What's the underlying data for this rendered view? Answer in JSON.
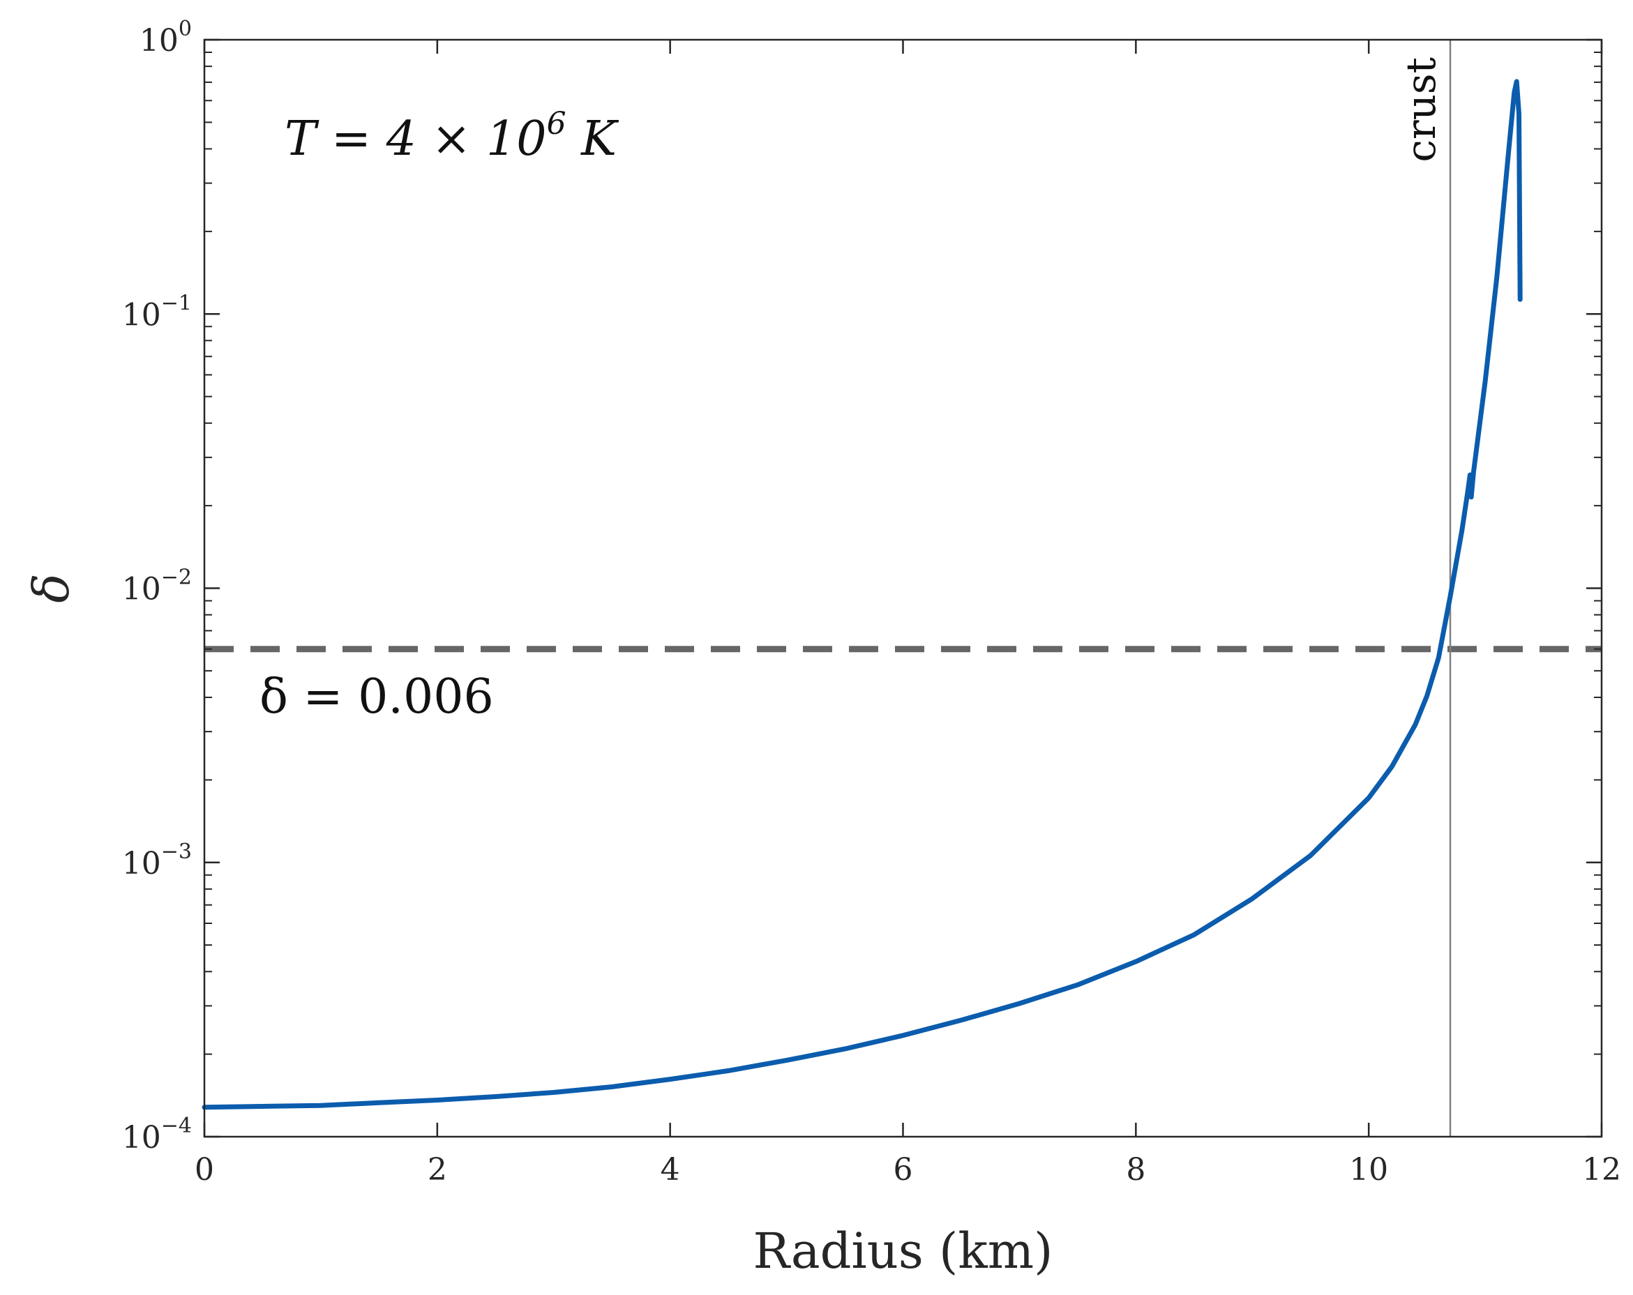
{
  "chart_data": {
    "type": "line",
    "xlabel": "Radius (km)",
    "ylabel": "δ",
    "xlim": [
      0,
      12
    ],
    "ylim": [
      0.0001,
      1
    ],
    "yscale": "log",
    "grid": false,
    "x_ticks": [
      0,
      2,
      4,
      6,
      8,
      10,
      12
    ],
    "x_tick_labels": [
      "0",
      "2",
      "4",
      "6",
      "8",
      "10",
      "12"
    ],
    "y_ticks": [
      0.0001,
      0.001,
      0.01,
      0.1,
      1
    ],
    "y_tick_labels": [
      {
        "base": "10",
        "exp": "−4"
      },
      {
        "base": "10",
        "exp": "−3"
      },
      {
        "base": "10",
        "exp": "−2"
      },
      {
        "base": "10",
        "exp": "−1"
      },
      {
        "base": "10",
        "exp": "0"
      }
    ],
    "series": [
      {
        "color": "#0b5cad",
        "x": [
          0,
          0.5,
          1,
          1.5,
          2,
          2.5,
          3,
          3.5,
          4,
          4.5,
          5,
          5.5,
          6,
          6.5,
          7,
          7.5,
          8,
          8.5,
          9,
          9.5,
          10,
          10.2,
          10.4,
          10.5,
          10.6,
          10.7,
          10.8,
          10.85,
          10.87,
          10.88,
          10.9,
          11.0,
          11.1,
          11.2,
          11.25,
          11.27,
          11.29,
          11.3
        ],
        "y": [
          0.000128,
          0.000129,
          0.00013,
          0.000133,
          0.000136,
          0.00014,
          0.000145,
          0.000152,
          0.000162,
          0.000174,
          0.00019,
          0.000209,
          0.000234,
          0.000266,
          0.000306,
          0.000358,
          0.000435,
          0.000545,
          0.000738,
          0.00106,
          0.00172,
          0.00224,
          0.00318,
          0.00405,
          0.00558,
          0.00934,
          0.0162,
          0.0224,
          0.0259,
          0.0215,
          0.0265,
          0.0568,
          0.136,
          0.388,
          0.643,
          0.704,
          0.537,
          0.113
        ]
      }
    ],
    "reference_lines": [
      {
        "orientation": "horizontal",
        "value": 0.006,
        "style": "dashed",
        "color": "#666666",
        "label_base": "δ = 0.006"
      },
      {
        "orientation": "vertical",
        "value": 10.7,
        "style": "solid",
        "color": "#808080",
        "label": "crust"
      }
    ],
    "annotations": {
      "temperature": {
        "prefix": "T = 4 × 10",
        "exp": "6",
        "suffix": " K"
      }
    }
  }
}
